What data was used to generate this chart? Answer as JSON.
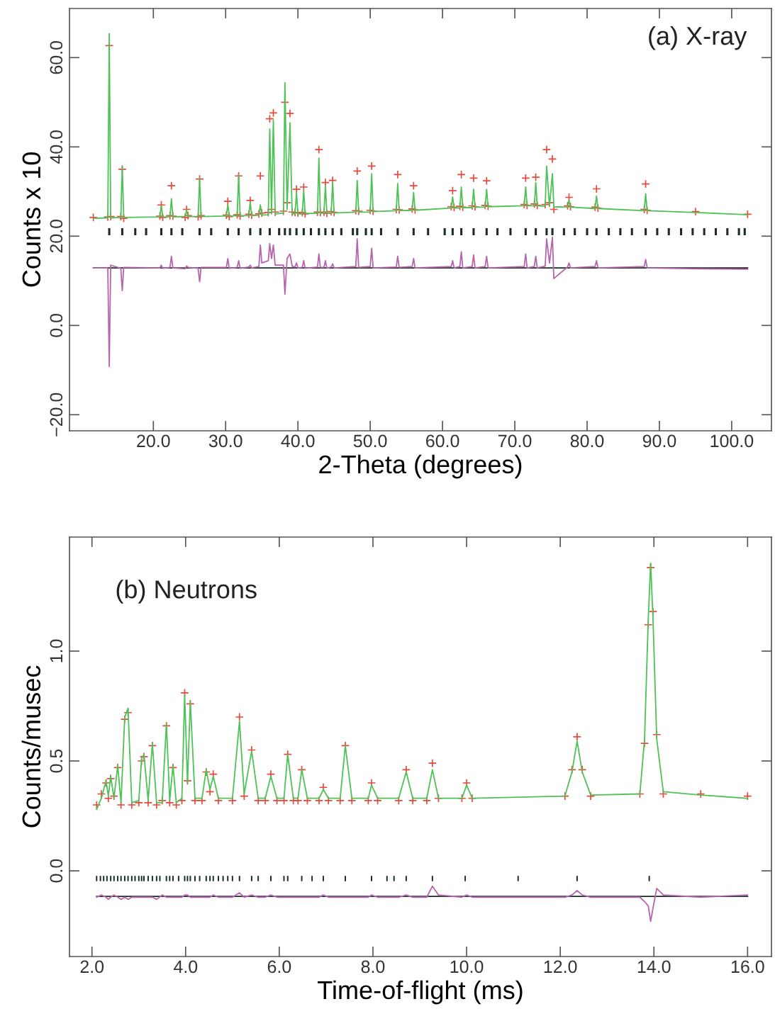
{
  "chart_data": [
    {
      "type": "line",
      "xlabel": "2-Theta (degrees)",
      "ylabel": "Counts x 10",
      "annotations": [
        "(a) X-ray"
      ],
      "xlim": [
        8.4,
        105.5
      ],
      "ylim": [
        -23.6,
        71
      ],
      "xticks": [
        {
          "value": 20,
          "label": "20.0"
        },
        {
          "value": 30,
          "label": "30.0"
        },
        {
          "value": 40,
          "label": "40.0"
        },
        {
          "value": 50,
          "label": "50.0"
        },
        {
          "value": 60,
          "label": "60.0"
        },
        {
          "value": 70,
          "label": "70.0"
        },
        {
          "value": 80,
          "label": "80.0"
        },
        {
          "value": 90,
          "label": "90.0"
        },
        {
          "value": 100,
          "label": "100.0"
        }
      ],
      "yticks": [
        {
          "value": -20,
          "label": "−20.0"
        },
        {
          "value": 0,
          "label": "0.0"
        },
        {
          "value": 20,
          "label": "20.0"
        },
        {
          "value": 40,
          "label": "40.0"
        },
        {
          "value": 60,
          "label": "60.0"
        }
      ],
      "x": [
        11.7,
        13.7,
        13.9,
        14.1,
        15.5,
        15.7,
        15.9,
        20.9,
        21.1,
        21.3,
        22.3,
        22.5,
        22.7,
        24.4,
        24.6,
        24.8,
        26.2,
        26.4,
        26.6,
        30.1,
        30.3,
        30.5,
        31.6,
        31.8,
        32.0,
        33.2,
        33.4,
        33.6,
        34.6,
        34.8,
        35.0,
        35.9,
        36.1,
        36.35,
        36.6,
        36.85,
        38.0,
        38.2,
        38.5,
        38.9,
        39.2,
        39.6,
        39.8,
        40.0,
        40.6,
        40.8,
        41.0,
        42.7,
        42.9,
        43.1,
        43.6,
        43.8,
        44.0,
        44.6,
        44.8,
        45.0,
        48.0,
        48.2,
        48.4,
        50.0,
        50.2,
        50.4,
        53.6,
        53.8,
        54.0,
        55.8,
        56.0,
        56.2,
        61.2,
        61.4,
        61.6,
        62.4,
        62.6,
        62.8,
        64.1,
        64.3,
        64.5,
        65.9,
        66.1,
        66.3,
        71.3,
        71.5,
        71.7,
        72.7,
        72.9,
        73.1,
        74.2,
        74.4,
        74.8,
        75.2,
        75.4,
        77.3,
        77.5,
        77.7,
        81.1,
        81.3,
        81.5,
        87.9,
        88.1,
        88.3,
        95.0,
        102.2
      ],
      "series": [
        {
          "type": "scatter",
          "marker": "cross",
          "color": "#e8473b",
          "values": [
            24.2,
            24.3,
            62.7,
            24.4,
            24.4,
            35.0,
            24.0,
            24.5,
            27.0,
            24.2,
            24.6,
            31.3,
            24.5,
            24.2,
            26.0,
            24.6,
            24.3,
            32.8,
            24.6,
            24.7,
            27.8,
            24.4,
            24.8,
            33.5,
            24.5,
            24.9,
            28.0,
            24.7,
            25.0,
            33.5,
            25.2,
            25.3,
            46.3,
            26.0,
            47.6,
            25.4,
            25.6,
            50.0,
            27.5,
            47.5,
            25.4,
            25.3,
            30.5,
            25.2,
            25.3,
            31.0,
            25.0,
            25.4,
            39.4,
            25.3,
            25.4,
            32.0,
            25.1,
            25.5,
            32.5,
            25.3,
            25.7,
            34.6,
            25.6,
            25.8,
            35.7,
            25.6,
            26.0,
            33.8,
            25.9,
            26.1,
            31.3,
            25.9,
            26.6,
            30.2,
            26.4,
            26.7,
            33.8,
            26.5,
            26.8,
            33.0,
            26.6,
            26.9,
            32.4,
            26.7,
            27.1,
            33.0,
            26.9,
            27.2,
            33.2,
            26.9,
            27.1,
            39.4,
            27.5,
            37.3,
            26.0,
            26.8,
            28.7,
            26.6,
            26.5,
            30.6,
            26.3,
            26.0,
            31.7,
            25.8,
            25.5,
            24.9
          ]
        },
        {
          "type": "line",
          "color": "#4fc257",
          "values": [
            24.0,
            24.1,
            65.4,
            24.1,
            24.2,
            35.6,
            24.2,
            24.3,
            26.8,
            24.3,
            24.3,
            28.4,
            24.3,
            24.4,
            25.9,
            24.4,
            24.4,
            33.0,
            24.4,
            24.5,
            27.1,
            24.5,
            24.6,
            33.8,
            24.6,
            24.6,
            27.6,
            24.6,
            24.7,
            27.0,
            24.7,
            24.8,
            44.0,
            25.0,
            46.0,
            25.0,
            25.2,
            54.4,
            26.0,
            45.4,
            25.0,
            25.0,
            29.7,
            25.0,
            25.0,
            30.2,
            25.1,
            25.1,
            37.5,
            25.1,
            25.2,
            31.3,
            25.2,
            25.2,
            32.2,
            25.2,
            25.4,
            32.5,
            25.4,
            25.4,
            34.0,
            25.5,
            25.7,
            31.8,
            25.7,
            25.8,
            29.8,
            25.8,
            26.3,
            28.8,
            26.3,
            26.3,
            31.0,
            26.4,
            26.4,
            30.5,
            26.5,
            26.5,
            30.5,
            26.6,
            26.8,
            31.0,
            26.8,
            26.8,
            32.0,
            26.8,
            26.7,
            35.7,
            26.7,
            34.0,
            26.6,
            26.5,
            28.0,
            26.5,
            26.2,
            29.0,
            26.2,
            25.7,
            29.5,
            25.7,
            25.3,
            24.8
          ]
        },
        {
          "type": "bar",
          "color": "#1b2b2b",
          "x": [
            13.9,
            15.7,
            17.5,
            19.0,
            21.1,
            22.5,
            24.0,
            26.4,
            28.0,
            30.3,
            31.8,
            33.4,
            34.8,
            36.1,
            37.4,
            38.2,
            38.9,
            39.8,
            40.8,
            41.8,
            42.9,
            43.8,
            44.8,
            46.0,
            47.6,
            48.2,
            49.4,
            50.2,
            51.5,
            53.8,
            56.0,
            58.0,
            60.3,
            61.4,
            62.6,
            64.3,
            66.1,
            67.6,
            69.4,
            71.5,
            72.9,
            74.4,
            75.2,
            76.8,
            78.3,
            80.0,
            81.3,
            83.0,
            84.6,
            86.2,
            88.1,
            89.7,
            91.3,
            93.0,
            94.6,
            96.2,
            97.8,
            99.4,
            101.0,
            101.8
          ],
          "values": [
            1.6,
            1.6,
            1.6,
            1.6,
            1.6,
            1.6,
            1.6,
            1.6,
            1.6,
            1.6,
            1.6,
            1.6,
            1.6,
            1.6,
            1.6,
            1.6,
            1.6,
            1.6,
            1.6,
            1.6,
            1.6,
            1.6,
            1.6,
            1.6,
            1.6,
            1.6,
            1.6,
            1.6,
            1.6,
            1.6,
            1.6,
            1.6,
            1.6,
            1.6,
            1.6,
            1.6,
            1.6,
            1.6,
            1.6,
            1.6,
            1.6,
            1.6,
            1.6,
            1.6,
            1.6,
            1.6,
            1.6,
            1.6,
            1.6,
            1.6,
            1.6,
            1.6,
            1.6,
            1.6,
            1.6,
            1.6,
            1.6,
            1.6,
            1.6,
            1.6
          ],
          "base": [
            20.2,
            20.2,
            20.2,
            20.2,
            20.2,
            20.2,
            20.2,
            20.2,
            20.2,
            20.2,
            20.2,
            20.2,
            20.2,
            20.2,
            20.2,
            20.2,
            20.2,
            20.2,
            20.2,
            20.2,
            20.2,
            20.2,
            20.2,
            20.2,
            20.2,
            20.2,
            20.2,
            20.2,
            20.2,
            20.2,
            20.2,
            20.2,
            20.2,
            20.2,
            20.2,
            20.2,
            20.2,
            20.2,
            20.2,
            20.2,
            20.2,
            20.2,
            20.2,
            20.2,
            20.2,
            20.2,
            20.2,
            20.2,
            20.2,
            20.2,
            20.2,
            20.2,
            20.2,
            20.2,
            20.2,
            20.2,
            20.2,
            20.2,
            20.2,
            20.2
          ]
        },
        {
          "type": "line",
          "color": "#1b2b2b",
          "x": [
            11.7,
            102.2
          ],
          "values": [
            12.9,
            12.9
          ]
        },
        {
          "type": "line",
          "color": "#b766ad",
          "values": [
            12.9,
            12.9,
            -9.2,
            13.5,
            12.8,
            7.8,
            13.0,
            12.9,
            13.5,
            12.8,
            13.0,
            15.5,
            12.9,
            12.7,
            13.3,
            13.0,
            12.8,
            9.8,
            13.0,
            13.0,
            15.0,
            12.8,
            13.0,
            14.5,
            12.8,
            13.1,
            13.5,
            12.9,
            13.2,
            18.0,
            14.0,
            14.5,
            18.3,
            15.0,
            18.0,
            13.5,
            13.5,
            7.0,
            15.0,
            16.0,
            13.3,
            13.1,
            14.0,
            12.9,
            13.0,
            14.5,
            12.8,
            13.1,
            16.0,
            13.0,
            13.0,
            14.5,
            12.8,
            13.1,
            13.8,
            12.9,
            13.2,
            19.4,
            13.0,
            13.2,
            17.3,
            12.9,
            13.1,
            15.5,
            13.0,
            13.2,
            15.0,
            12.9,
            13.2,
            14.5,
            12.9,
            13.2,
            16.5,
            12.9,
            13.2,
            15.8,
            12.9,
            13.2,
            15.5,
            12.9,
            13.2,
            16.0,
            12.9,
            13.2,
            15.5,
            12.9,
            13.3,
            19.4,
            14.0,
            19.8,
            10.5,
            13.1,
            14.0,
            12.9,
            13.2,
            14.5,
            12.9,
            13.2,
            14.8,
            12.9,
            12.7,
            12.6
          ]
        }
      ]
    },
    {
      "type": "line",
      "xlabel": "Time-of-flight (ms)",
      "ylabel": "Counts/musec",
      "annotations": [
        "(b) Neutrons"
      ],
      "xlim": [
        1.52,
        16.51
      ],
      "ylim": [
        -0.39,
        1.519
      ],
      "xticks": [
        {
          "value": 2,
          "label": "2.0"
        },
        {
          "value": 4,
          "label": "4.0"
        },
        {
          "value": 6,
          "label": "6.0"
        },
        {
          "value": 8,
          "label": "8.0"
        },
        {
          "value": 10,
          "label": "10.0"
        },
        {
          "value": 12,
          "label": "12.0"
        },
        {
          "value": 14,
          "label": "14.0"
        },
        {
          "value": 16,
          "label": "16.0"
        }
      ],
      "yticks": [
        {
          "value": 0,
          "label": "0.0"
        },
        0.5,
        {
          "value": 1,
          "label": "1.0"
        }
      ],
      "x": [
        2.1,
        2.2,
        2.3,
        2.35,
        2.4,
        2.47,
        2.55,
        2.62,
        2.7,
        2.77,
        2.85,
        3.0,
        3.06,
        3.11,
        3.2,
        3.29,
        3.38,
        3.5,
        3.59,
        3.66,
        3.73,
        3.8,
        3.92,
        3.98,
        4.04,
        4.1,
        4.2,
        4.35,
        4.44,
        4.52,
        4.59,
        4.7,
        5.0,
        5.15,
        5.25,
        5.41,
        5.55,
        5.7,
        5.82,
        5.95,
        6.1,
        6.18,
        6.3,
        6.4,
        6.48,
        6.6,
        6.85,
        6.94,
        7.05,
        7.3,
        7.41,
        7.55,
        7.9,
        7.97,
        8.1,
        8.55,
        8.71,
        8.85,
        9.15,
        9.27,
        9.4,
        9.9,
        10.0,
        10.12,
        12.1,
        12.25,
        12.36,
        12.47,
        12.65,
        13.7,
        13.8,
        13.88,
        13.93,
        13.98,
        14.06,
        14.2,
        15.0,
        16.0
      ],
      "series": [
        {
          "type": "scatter",
          "marker": "cross",
          "color": "#e8473b",
          "values": [
            0.3,
            0.35,
            0.4,
            0.33,
            0.42,
            0.34,
            0.47,
            0.3,
            0.69,
            0.72,
            0.3,
            0.31,
            0.5,
            0.52,
            0.31,
            0.57,
            0.3,
            0.32,
            0.66,
            0.31,
            0.47,
            0.3,
            0.32,
            0.81,
            0.41,
            0.76,
            0.32,
            0.32,
            0.45,
            0.36,
            0.44,
            0.32,
            0.32,
            0.7,
            0.34,
            0.55,
            0.32,
            0.32,
            0.44,
            0.32,
            0.32,
            0.53,
            0.32,
            0.32,
            0.46,
            0.32,
            0.32,
            0.38,
            0.32,
            0.32,
            0.57,
            0.32,
            0.32,
            0.4,
            0.32,
            0.32,
            0.46,
            0.32,
            0.32,
            0.49,
            0.33,
            0.33,
            0.4,
            0.33,
            0.34,
            0.46,
            0.61,
            0.46,
            0.34,
            0.35,
            0.58,
            1.12,
            1.38,
            1.18,
            0.62,
            0.35,
            0.35,
            0.34
          ]
        },
        {
          "type": "line",
          "color": "#4fc257",
          "values": [
            0.28,
            0.33,
            0.41,
            0.34,
            0.43,
            0.33,
            0.48,
            0.31,
            0.7,
            0.74,
            0.31,
            0.32,
            0.51,
            0.53,
            0.32,
            0.58,
            0.31,
            0.31,
            0.67,
            0.32,
            0.48,
            0.31,
            0.33,
            0.8,
            0.4,
            0.77,
            0.33,
            0.33,
            0.46,
            0.37,
            0.43,
            0.33,
            0.33,
            0.68,
            0.35,
            0.545,
            0.33,
            0.33,
            0.43,
            0.33,
            0.33,
            0.53,
            0.33,
            0.33,
            0.46,
            0.33,
            0.33,
            0.37,
            0.33,
            0.33,
            0.57,
            0.33,
            0.33,
            0.39,
            0.33,
            0.33,
            0.45,
            0.33,
            0.33,
            0.46,
            0.33,
            0.33,
            0.39,
            0.33,
            0.34,
            0.45,
            0.59,
            0.45,
            0.345,
            0.35,
            0.6,
            1.15,
            1.4,
            1.15,
            0.6,
            0.36,
            0.345,
            0.33
          ]
        },
        {
          "type": "bar",
          "color": "#1b2b2b",
          "x": [
            2.1,
            2.18,
            2.25,
            2.32,
            2.4,
            2.47,
            2.55,
            2.62,
            2.7,
            2.77,
            2.85,
            2.92,
            3.0,
            3.06,
            3.11,
            3.2,
            3.29,
            3.38,
            3.45,
            3.59,
            3.66,
            3.73,
            3.85,
            3.98,
            4.04,
            4.1,
            4.2,
            4.3,
            4.44,
            4.52,
            4.59,
            4.7,
            4.8,
            4.9,
            5.0,
            5.15,
            5.41,
            5.55,
            5.82,
            6.1,
            6.18,
            6.48,
            6.7,
            6.94,
            7.41,
            7.97,
            8.3,
            8.45,
            8.71,
            9.27,
            9.97,
            11.1,
            12.36,
            13.9
          ],
          "values": [
            0.024,
            0.024,
            0.024,
            0.024,
            0.024,
            0.024,
            0.024,
            0.024,
            0.024,
            0.024,
            0.024,
            0.024,
            0.024,
            0.024,
            0.024,
            0.024,
            0.024,
            0.024,
            0.024,
            0.024,
            0.024,
            0.024,
            0.024,
            0.024,
            0.024,
            0.024,
            0.024,
            0.024,
            0.024,
            0.024,
            0.024,
            0.024,
            0.024,
            0.024,
            0.024,
            0.024,
            0.024,
            0.024,
            0.024,
            0.024,
            0.024,
            0.024,
            0.024,
            0.024,
            0.024,
            0.024,
            0.024,
            0.024,
            0.024,
            0.024,
            0.024,
            0.024,
            0.024,
            0.024
          ],
          "base": [
            -0.047,
            -0.047,
            -0.047,
            -0.047,
            -0.047,
            -0.047,
            -0.047,
            -0.047,
            -0.047,
            -0.047,
            -0.047,
            -0.047,
            -0.047,
            -0.047,
            -0.047,
            -0.047,
            -0.047,
            -0.047,
            -0.047,
            -0.047,
            -0.047,
            -0.047,
            -0.047,
            -0.047,
            -0.047,
            -0.047,
            -0.047,
            -0.047,
            -0.047,
            -0.047,
            -0.047,
            -0.047,
            -0.047,
            -0.047,
            -0.047,
            -0.047,
            -0.047,
            -0.047,
            -0.047,
            -0.047,
            -0.047,
            -0.047,
            -0.047,
            -0.047,
            -0.047,
            -0.047,
            -0.047,
            -0.047,
            -0.047,
            -0.047,
            -0.047,
            -0.047,
            -0.047,
            -0.047
          ]
        },
        {
          "type": "line",
          "color": "#1b2b2b",
          "x": [
            2.1,
            16.0
          ],
          "values": [
            -0.116,
            -0.116
          ]
        },
        {
          "type": "line",
          "color": "#b766ad",
          "values": [
            -0.12,
            -0.11,
            -0.12,
            -0.13,
            -0.12,
            -0.11,
            -0.12,
            -0.13,
            -0.12,
            -0.13,
            -0.12,
            -0.12,
            -0.12,
            -0.12,
            -0.12,
            -0.12,
            -0.13,
            -0.11,
            -0.12,
            -0.12,
            -0.12,
            -0.12,
            -0.12,
            -0.11,
            -0.11,
            -0.12,
            -0.12,
            -0.12,
            -0.12,
            -0.12,
            -0.11,
            -0.12,
            -0.12,
            -0.1,
            -0.12,
            -0.11,
            -0.12,
            -0.12,
            -0.11,
            -0.12,
            -0.12,
            -0.12,
            -0.12,
            -0.12,
            -0.12,
            -0.12,
            -0.12,
            -0.11,
            -0.12,
            -0.12,
            -0.12,
            -0.12,
            -0.12,
            -0.11,
            -0.12,
            -0.12,
            -0.11,
            -0.12,
            -0.12,
            -0.07,
            -0.11,
            -0.12,
            -0.11,
            -0.12,
            -0.12,
            -0.11,
            -0.09,
            -0.11,
            -0.12,
            -0.12,
            -0.14,
            -0.16,
            -0.23,
            -0.17,
            -0.08,
            -0.11,
            -0.12,
            -0.11
          ]
        }
      ]
    }
  ]
}
